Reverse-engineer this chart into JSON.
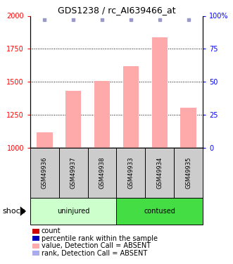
{
  "title": "GDS1238 / rc_AI639466_at",
  "samples": [
    "GSM49936",
    "GSM49937",
    "GSM49938",
    "GSM49933",
    "GSM49934",
    "GSM49935"
  ],
  "bar_values": [
    1115,
    1430,
    1505,
    1620,
    1840,
    1305
  ],
  "dot_values": [
    97,
    97,
    97,
    97,
    97,
    97
  ],
  "bar_color": "#ffaaaa",
  "dot_color": "#9999cc",
  "ylim_left": [
    1000,
    2000
  ],
  "ylim_right": [
    0,
    100
  ],
  "yticks_left": [
    1000,
    1250,
    1500,
    1750,
    2000
  ],
  "yticks_right": [
    0,
    25,
    50,
    75,
    100
  ],
  "ytick_labels_right": [
    "0",
    "25",
    "50",
    "75",
    "100%"
  ],
  "grid_lines": [
    1250,
    1500,
    1750
  ],
  "groups": [
    {
      "label": "uninjured",
      "start": 0,
      "end": 3,
      "color": "#ccffcc"
    },
    {
      "label": "contused",
      "start": 3,
      "end": 6,
      "color": "#44dd44"
    }
  ],
  "group_label": "shock",
  "legend_items": [
    {
      "label": "count",
      "color": "#cc0000"
    },
    {
      "label": "percentile rank within the sample",
      "color": "#0000bb"
    },
    {
      "label": "value, Detection Call = ABSENT",
      "color": "#ffaaaa"
    },
    {
      "label": "rank, Detection Call = ABSENT",
      "color": "#aaaaee"
    }
  ],
  "title_fontsize": 9,
  "tick_fontsize": 7,
  "label_fontsize": 7,
  "sample_fontsize": 6,
  "legend_fontsize": 7
}
